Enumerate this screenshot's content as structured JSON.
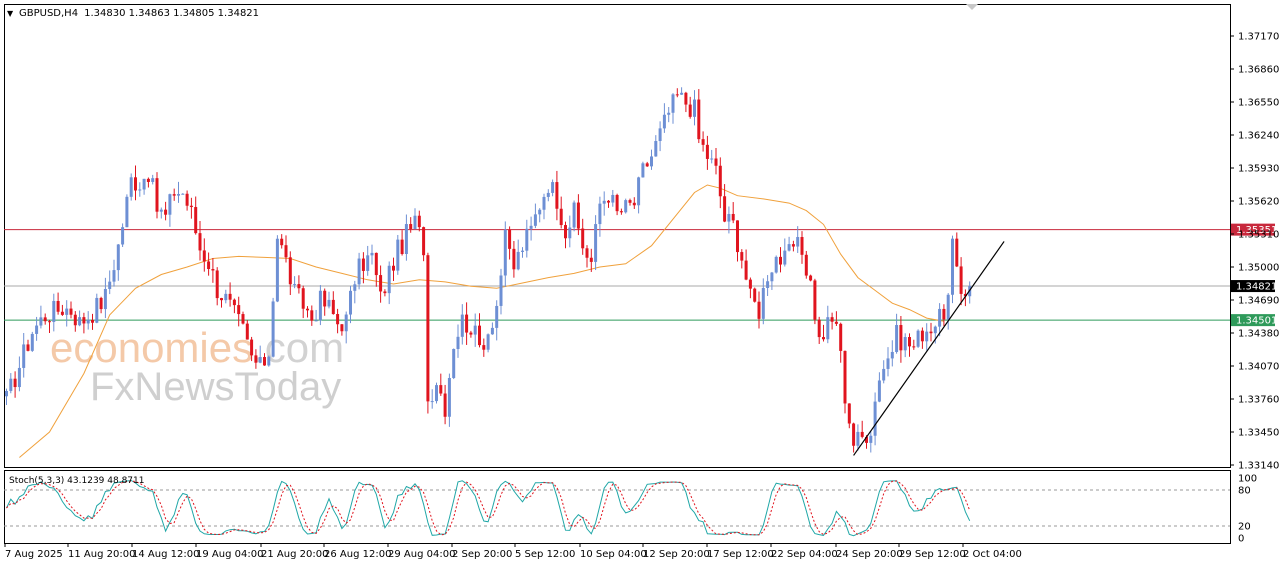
{
  "header": {
    "symbol": "GBPUSD,H4",
    "ohlc": "1.34830 1.34863 1.34805 1.34821"
  },
  "watermark": {
    "line1_a": "economies",
    "line1_b": ".com",
    "line2": "FxNewsToday"
  },
  "colors": {
    "bull": "#6d8fd4",
    "bear": "#e0141e",
    "ma": "#f0a13c",
    "resistance": "#c8283c",
    "support": "#2e9a5a",
    "current": "#000000",
    "stoch_main": "#20a7a7",
    "stoch_signal": "#e0141e"
  },
  "chart_data": {
    "type": "candlestick",
    "symbol": "GBPUSD",
    "timeframe": "H4",
    "ylim": [
      1.3314,
      1.3748
    ],
    "y_ticks": [
      "1.37170",
      "1.36860",
      "1.36550",
      "1.36240",
      "1.35930",
      "1.35620",
      "1.35310",
      "1.35000",
      "1.34690",
      "1.34380",
      "1.34070",
      "1.33760",
      "1.33450",
      "1.33140"
    ],
    "x_ticks": [
      "7 Aug 2025",
      "11 Aug 20:00",
      "14 Aug 12:00",
      "19 Aug 04:00",
      "21 Aug 20:00",
      "26 Aug 12:00",
      "29 Aug 04:00",
      "2 Sep 20:00",
      "5 Sep 12:00",
      "10 Sep 04:00",
      "12 Sep 20:00",
      "17 Sep 12:00",
      "22 Sep 04:00",
      "24 Sep 20:00",
      "29 Sep 12:00",
      "2 Oct 04:00"
    ],
    "close_path": [
      [
        0,
        1.3375
      ],
      [
        6,
        1.344
      ],
      [
        9,
        1.3455
      ],
      [
        13,
        1.3462
      ],
      [
        15,
        1.346
      ],
      [
        17,
        1.3448
      ],
      [
        20,
        1.3458
      ],
      [
        23,
        1.3472
      ],
      [
        26,
        1.352
      ],
      [
        29,
        1.3582
      ],
      [
        31,
        1.358
      ],
      [
        33,
        1.359
      ],
      [
        35,
        1.3555
      ],
      [
        37,
        1.3547
      ],
      [
        39,
        1.3572
      ],
      [
        41,
        1.357
      ],
      [
        43,
        1.355
      ],
      [
        45,
        1.3518
      ],
      [
        47,
        1.3505
      ],
      [
        49,
        1.348
      ],
      [
        51,
        1.347
      ],
      [
        53,
        1.3455
      ],
      [
        55,
        1.344
      ],
      [
        57,
        1.3415
      ],
      [
        59,
        1.3405
      ],
      [
        61,
        1.342
      ],
      [
        63,
        1.353
      ],
      [
        65,
        1.3505
      ],
      [
        67,
        1.3475
      ],
      [
        69,
        1.3465
      ],
      [
        71,
        1.3452
      ],
      [
        73,
        1.3468
      ],
      [
        75,
        1.3462
      ],
      [
        77,
        1.3448
      ],
      [
        79,
        1.345
      ],
      [
        81,
        1.349
      ],
      [
        83,
        1.3505
      ],
      [
        85,
        1.351
      ],
      [
        87,
        1.347
      ],
      [
        89,
        1.3495
      ],
      [
        91,
        1.3515
      ],
      [
        93,
        1.353
      ],
      [
        95,
        1.3542
      ],
      [
        97,
        1.352
      ],
      [
        98,
        1.3375
      ],
      [
        100,
        1.3395
      ],
      [
        102,
        1.337
      ],
      [
        104,
        1.343
      ],
      [
        106,
        1.345
      ],
      [
        108,
        1.3445
      ],
      [
        110,
        1.3425
      ],
      [
        112,
        1.344
      ],
      [
        114,
        1.3465
      ],
      [
        116,
        1.3525
      ],
      [
        118,
        1.35
      ],
      [
        120,
        1.352
      ],
      [
        122,
        1.3535
      ],
      [
        124,
        1.356
      ],
      [
        126,
        1.358
      ],
      [
        128,
        1.3565
      ],
      [
        130,
        1.3535
      ],
      [
        132,
        1.355
      ],
      [
        134,
        1.352
      ],
      [
        136,
        1.3505
      ],
      [
        138,
        1.356
      ],
      [
        140,
        1.357
      ],
      [
        142,
        1.355
      ],
      [
        144,
        1.3555
      ],
      [
        146,
        1.356
      ],
      [
        148,
        1.359
      ],
      [
        150,
        1.3605
      ],
      [
        152,
        1.3625
      ],
      [
        154,
        1.3645
      ],
      [
        156,
        1.366
      ],
      [
        158,
        1.3655
      ],
      [
        160,
        1.3648
      ],
      [
        161,
        1.362
      ],
      [
        163,
        1.3605
      ],
      [
        165,
        1.359
      ],
      [
        167,
        1.3545
      ],
      [
        169,
        1.354
      ],
      [
        171,
        1.351
      ],
      [
        173,
        1.347
      ],
      [
        175,
        1.346
      ],
      [
        177,
        1.3495
      ],
      [
        179,
        1.351
      ],
      [
        181,
        1.3505
      ],
      [
        183,
        1.352
      ],
      [
        185,
        1.3515
      ],
      [
        187,
        1.3485
      ],
      [
        189,
        1.343
      ],
      [
        191,
        1.3445
      ],
      [
        193,
        1.345
      ],
      [
        195,
        1.338
      ],
      [
        197,
        1.3335
      ],
      [
        199,
        1.334
      ],
      [
        201,
        1.335
      ],
      [
        203,
        1.34
      ],
      [
        205,
        1.3415
      ],
      [
        207,
        1.3435
      ],
      [
        209,
        1.343
      ],
      [
        211,
        1.3425
      ],
      [
        213,
        1.344
      ],
      [
        215,
        1.3445
      ],
      [
        217,
        1.345
      ],
      [
        219,
        1.347
      ],
      [
        220,
        1.352
      ],
      [
        221,
        1.349
      ],
      [
        222,
        1.3475
      ],
      [
        224,
        1.3482
      ]
    ],
    "sma_path": [
      [
        3,
        1.3321
      ],
      [
        10,
        1.3345
      ],
      [
        18,
        1.34
      ],
      [
        24,
        1.3455
      ],
      [
        30,
        1.348
      ],
      [
        36,
        1.3493
      ],
      [
        42,
        1.35
      ],
      [
        48,
        1.3508
      ],
      [
        54,
        1.351
      ],
      [
        60,
        1.3509
      ],
      [
        66,
        1.3508
      ],
      [
        72,
        1.35
      ],
      [
        78,
        1.3494
      ],
      [
        84,
        1.3488
      ],
      [
        90,
        1.3484
      ],
      [
        96,
        1.3488
      ],
      [
        102,
        1.3486
      ],
      [
        108,
        1.3482
      ],
      [
        114,
        1.348
      ],
      [
        120,
        1.3485
      ],
      [
        126,
        1.349
      ],
      [
        132,
        1.3494
      ],
      [
        138,
        1.35
      ],
      [
        144,
        1.3503
      ],
      [
        150,
        1.352
      ],
      [
        156,
        1.355
      ],
      [
        160,
        1.357
      ],
      [
        163,
        1.3577
      ],
      [
        166,
        1.3574
      ],
      [
        170,
        1.3567
      ],
      [
        176,
        1.3564
      ],
      [
        182,
        1.356
      ],
      [
        186,
        1.3553
      ],
      [
        190,
        1.354
      ],
      [
        194,
        1.3512
      ],
      [
        198,
        1.349
      ],
      [
        202,
        1.3478
      ],
      [
        206,
        1.3466
      ],
      [
        210,
        1.346
      ],
      [
        214,
        1.3452
      ],
      [
        218,
        1.3449
      ]
    ],
    "resistance_level": "1.35351",
    "support_level": "1.34501",
    "current_price": "1.34821",
    "trendline": [
      [
        197,
        1.3323
      ],
      [
        232,
        1.3524
      ]
    ],
    "stochastic": {
      "label": "Stoch(5,3,3) 43.1239 48.8711",
      "levels": [
        20,
        80
      ],
      "y_ticks": [
        "100",
        "80",
        "20",
        "0"
      ]
    }
  }
}
